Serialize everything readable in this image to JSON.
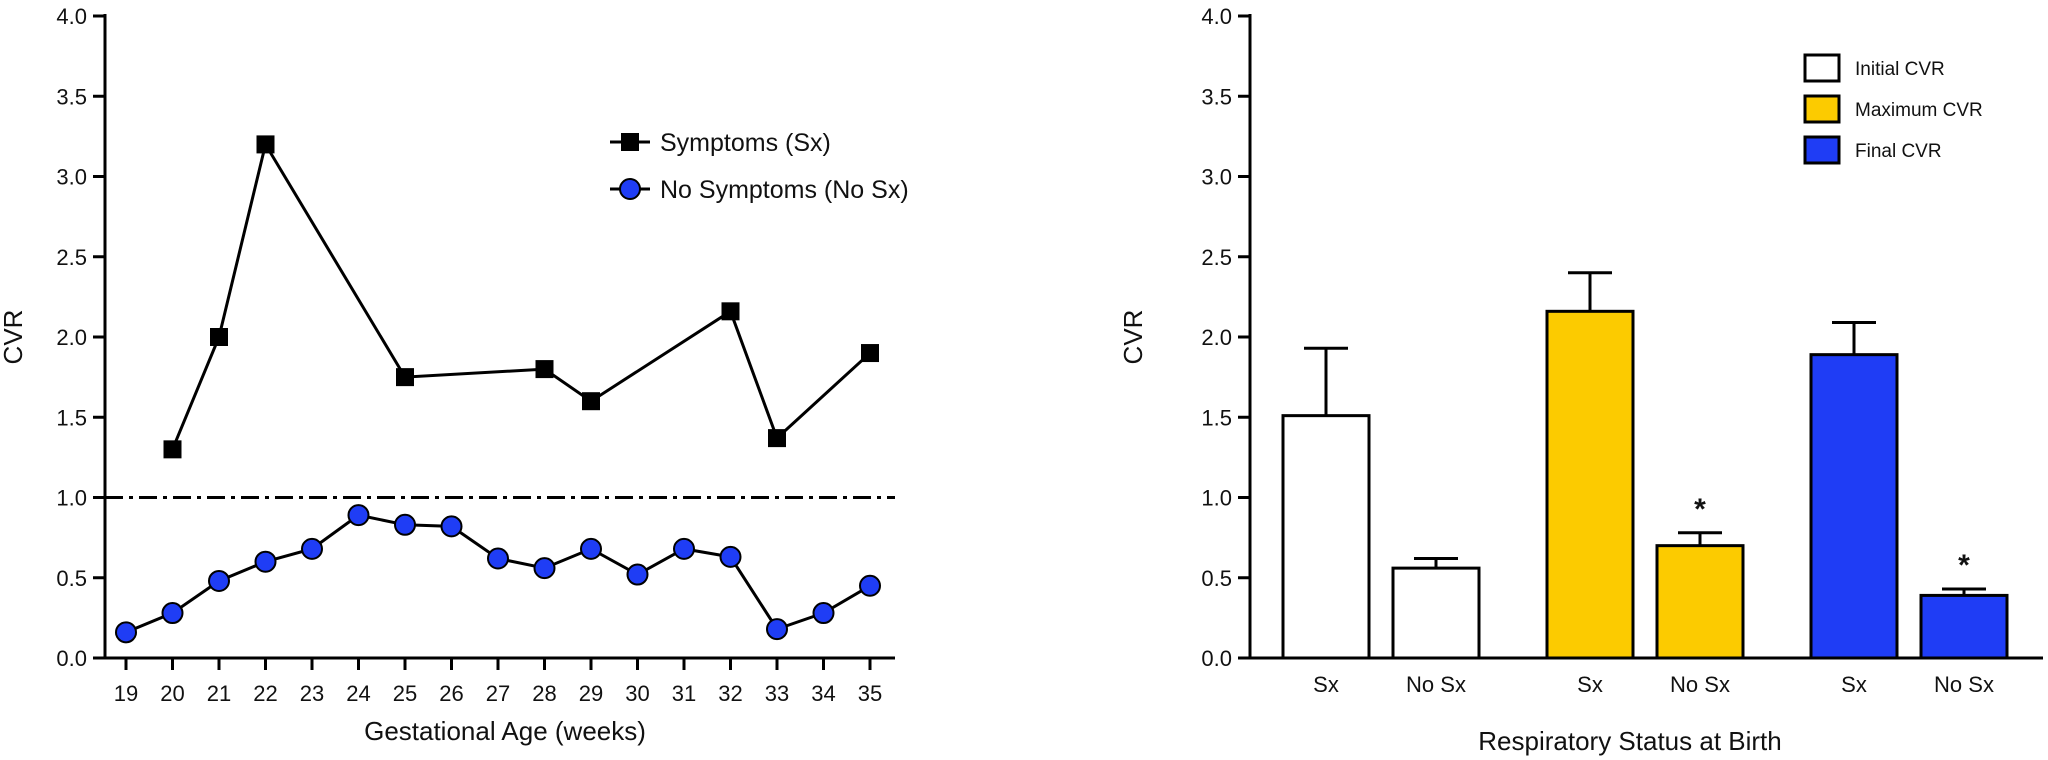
{
  "chart_data": [
    {
      "type": "line",
      "xlabel": "Gestational Age (weeks)",
      "ylabel": "CVR",
      "xlim": [
        19,
        35
      ],
      "ylim": [
        0,
        4
      ],
      "x_ticks": [
        "19",
        "20",
        "21",
        "22",
        "23",
        "24",
        "25",
        "26",
        "27",
        "28",
        "29",
        "30",
        "31",
        "32",
        "33",
        "34",
        "35"
      ],
      "y_ticks": [
        "0.0",
        "0.5",
        "1.0",
        "1.5",
        "2.0",
        "2.5",
        "3.0",
        "3.5",
        "4.0"
      ],
      "reference_line": {
        "y": 1.0,
        "style": "dash-dot"
      },
      "legend_position": "top-right",
      "grid": false,
      "series": [
        {
          "name": "Symptoms (Sx)",
          "marker": "square",
          "color": "#000000",
          "points": [
            {
              "x": 20,
              "y": 1.3
            },
            {
              "x": 21,
              "y": 2.0
            },
            {
              "x": 22,
              "y": 3.2
            },
            {
              "x": 25,
              "y": 1.75
            },
            {
              "x": 28,
              "y": 1.8
            },
            {
              "x": 29,
              "y": 1.6
            },
            {
              "x": 32,
              "y": 2.16
            },
            {
              "x": 33,
              "y": 1.37
            },
            {
              "x": 35,
              "y": 1.9
            }
          ]
        },
        {
          "name": "No Symptoms (No Sx)",
          "marker": "circle",
          "color": "#1f3df5",
          "points": [
            {
              "x": 19,
              "y": 0.16
            },
            {
              "x": 20,
              "y": 0.28
            },
            {
              "x": 21,
              "y": 0.48
            },
            {
              "x": 22,
              "y": 0.6
            },
            {
              "x": 23,
              "y": 0.68
            },
            {
              "x": 24,
              "y": 0.89
            },
            {
              "x": 25,
              "y": 0.83
            },
            {
              "x": 26,
              "y": 0.82
            },
            {
              "x": 27,
              "y": 0.62
            },
            {
              "x": 28,
              "y": 0.56
            },
            {
              "x": 29,
              "y": 0.68
            },
            {
              "x": 30,
              "y": 0.52
            },
            {
              "x": 31,
              "y": 0.68
            },
            {
              "x": 32,
              "y": 0.63
            },
            {
              "x": 33,
              "y": 0.18
            },
            {
              "x": 34,
              "y": 0.28
            },
            {
              "x": 35,
              "y": 0.45
            }
          ]
        }
      ]
    },
    {
      "type": "bar",
      "xlabel": "Respiratory Status at Birth",
      "ylabel": "CVR",
      "ylim": [
        0,
        4
      ],
      "y_ticks": [
        "0.0",
        "0.5",
        "1.0",
        "1.5",
        "2.0",
        "2.5",
        "3.0",
        "3.5",
        "4.0"
      ],
      "legend_position": "top-right",
      "grid": false,
      "significance_marker": "*",
      "series": [
        {
          "name": "Initial CVR",
          "color": "#ffffff",
          "bars": [
            {
              "label": "Sx",
              "value": 1.51,
              "error": 0.42,
              "significant": false
            },
            {
              "label": "No Sx",
              "value": 0.56,
              "error": 0.06,
              "significant": false
            }
          ]
        },
        {
          "name": "Maximum CVR",
          "color": "#fccb00",
          "bars": [
            {
              "label": "Sx",
              "value": 2.16,
              "error": 0.24,
              "significant": false
            },
            {
              "label": "No Sx",
              "value": 0.7,
              "error": 0.08,
              "significant": true
            }
          ]
        },
        {
          "name": "Final CVR",
          "color": "#1f3df5",
          "bars": [
            {
              "label": "Sx",
              "value": 1.89,
              "error": 0.2,
              "significant": false
            },
            {
              "label": "No Sx",
              "value": 0.39,
              "error": 0.04,
              "significant": true
            }
          ]
        }
      ]
    }
  ]
}
